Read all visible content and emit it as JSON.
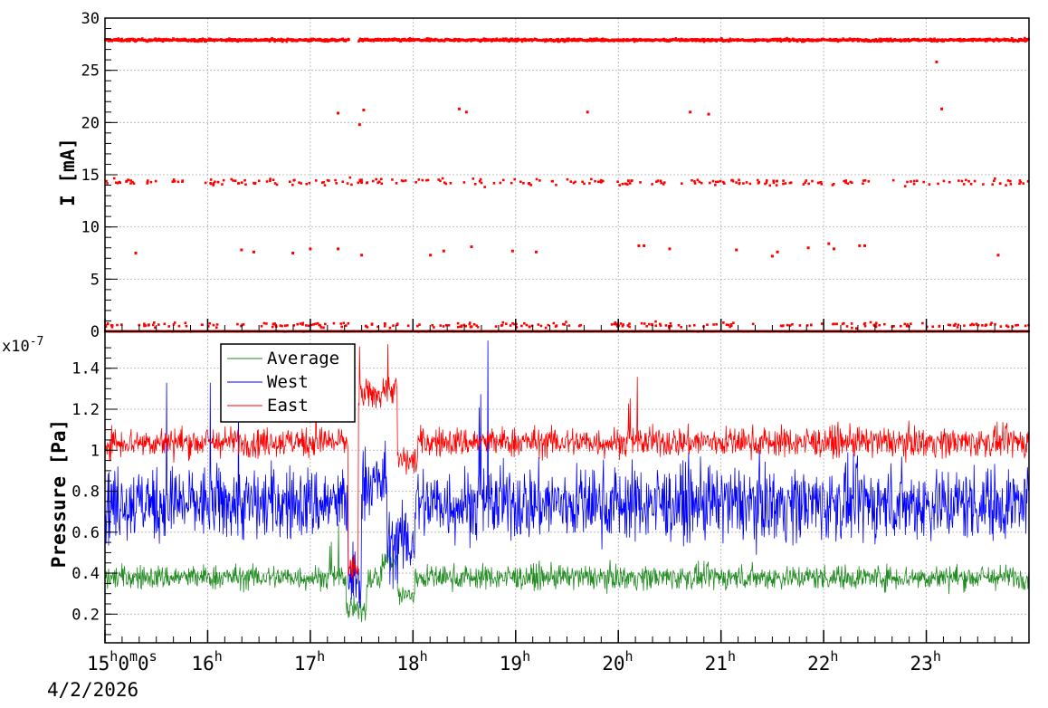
{
  "chart_data": [
    {
      "type": "scatter",
      "panel": "top",
      "ylabel": "I [mA]",
      "ylim": [
        0,
        30
      ],
      "yticks": [
        0,
        5,
        10,
        15,
        20,
        25,
        30
      ],
      "grid": true,
      "series": [
        {
          "color": "#ff0000",
          "bands": [
            {
              "y_center": 27.9,
              "spread": 0.25,
              "density": "continuous",
              "gaps_hours": [
                [
                  17.38,
                  17.47
                ]
              ]
            },
            {
              "y_center": 14.3,
              "spread": 0.6,
              "density": "sparse"
            },
            {
              "y_center": 0.6,
              "spread": 0.5,
              "density": "sparse"
            },
            {
              "y_center": 0.0,
              "spread": 0.05,
              "density": "continuous"
            }
          ],
          "outliers": [
            {
              "x_hours": 17.27,
              "y": 20.9
            },
            {
              "x_hours": 17.48,
              "y": 19.8
            },
            {
              "x_hours": 17.52,
              "y": 21.2
            },
            {
              "x_hours": 18.45,
              "y": 21.3
            },
            {
              "x_hours": 18.52,
              "y": 21.0
            },
            {
              "x_hours": 19.7,
              "y": 21.0
            },
            {
              "x_hours": 20.7,
              "y": 21.0
            },
            {
              "x_hours": 20.88,
              "y": 20.8
            },
            {
              "x_hours": 23.15,
              "y": 21.3
            },
            {
              "x_hours": 23.1,
              "y": 25.8
            },
            {
              "x_hours": 15.3,
              "y": 7.5
            },
            {
              "x_hours": 16.33,
              "y": 7.8
            },
            {
              "x_hours": 16.45,
              "y": 7.6
            },
            {
              "x_hours": 16.83,
              "y": 7.5
            },
            {
              "x_hours": 17.0,
              "y": 7.9
            },
            {
              "x_hours": 17.27,
              "y": 7.9
            },
            {
              "x_hours": 17.5,
              "y": 7.3
            },
            {
              "x_hours": 18.17,
              "y": 7.3
            },
            {
              "x_hours": 18.3,
              "y": 7.7
            },
            {
              "x_hours": 18.57,
              "y": 8.1
            },
            {
              "x_hours": 18.97,
              "y": 7.7
            },
            {
              "x_hours": 19.2,
              "y": 7.6
            },
            {
              "x_hours": 20.2,
              "y": 8.2
            },
            {
              "x_hours": 20.25,
              "y": 8.2
            },
            {
              "x_hours": 20.5,
              "y": 7.9
            },
            {
              "x_hours": 21.15,
              "y": 7.8
            },
            {
              "x_hours": 21.5,
              "y": 7.2
            },
            {
              "x_hours": 21.55,
              "y": 7.6
            },
            {
              "x_hours": 21.85,
              "y": 8.0
            },
            {
              "x_hours": 22.05,
              "y": 8.4
            },
            {
              "x_hours": 22.1,
              "y": 7.9
            },
            {
              "x_hours": 22.35,
              "y": 8.2
            },
            {
              "x_hours": 22.4,
              "y": 8.2
            },
            {
              "x_hours": 23.7,
              "y": 7.3
            }
          ]
        }
      ]
    },
    {
      "type": "line",
      "panel": "bottom",
      "ylabel": "Pressure [Pa]",
      "y_multiplier": "x10",
      "y_multiplier_exp": "-7",
      "ylim": [
        0.06,
        1.58
      ],
      "yticks": [
        "0.2",
        "0.4",
        "0.6",
        "0.8",
        "1",
        "1.2",
        "1.4"
      ],
      "grid": true,
      "legend_position": "top-left",
      "series": [
        {
          "name": "Average",
          "color": "#228b22",
          "baseline": 0.38,
          "noise": 0.13,
          "anomalies": [
            {
              "from": 17.35,
              "to": 17.55,
              "mean": 0.22
            },
            {
              "from": 17.7,
              "to": 17.85,
              "mean": 0.46
            },
            {
              "from": 17.85,
              "to": 18.02,
              "mean": 0.29
            }
          ]
        },
        {
          "name": "West",
          "color": "#0000ff",
          "baseline": 0.74,
          "noise": 0.4,
          "anomalies": [
            {
              "from": 17.37,
              "to": 17.5,
              "mean": 0.36
            },
            {
              "from": 17.5,
              "to": 17.75,
              "mean": 0.84
            },
            {
              "from": 17.75,
              "to": 18.02,
              "mean": 0.55
            }
          ]
        },
        {
          "name": "East",
          "color": "#ff0000",
          "baseline": 1.04,
          "noise": 0.16,
          "anomalies": [
            {
              "from": 17.37,
              "to": 17.47,
              "mean": 0.42
            },
            {
              "from": 17.47,
              "to": 17.7,
              "mean": 1.27
            },
            {
              "from": 17.7,
              "to": 17.85,
              "mean": 1.3
            },
            {
              "from": 17.85,
              "to": 18.05,
              "mean": 0.95
            }
          ]
        }
      ]
    }
  ],
  "x_axis": {
    "range_hours": [
      15.0,
      24.0
    ],
    "ticks": [
      {
        "hour": 15,
        "label_base": "15",
        "label_sup": "h",
        "extra": [
          "0",
          "m",
          "0",
          "s"
        ]
      },
      {
        "hour": 16,
        "label_base": "16",
        "label_sup": "h"
      },
      {
        "hour": 17,
        "label_base": "17",
        "label_sup": "h"
      },
      {
        "hour": 18,
        "label_base": "18",
        "label_sup": "h"
      },
      {
        "hour": 19,
        "label_base": "19",
        "label_sup": "h"
      },
      {
        "hour": 20,
        "label_base": "20",
        "label_sup": "h"
      },
      {
        "hour": 21,
        "label_base": "21",
        "label_sup": "h"
      },
      {
        "hour": 22,
        "label_base": "22",
        "label_sup": "h"
      },
      {
        "hour": 23,
        "label_base": "23",
        "label_sup": "h"
      }
    ],
    "date_label": "4/2/2026"
  }
}
